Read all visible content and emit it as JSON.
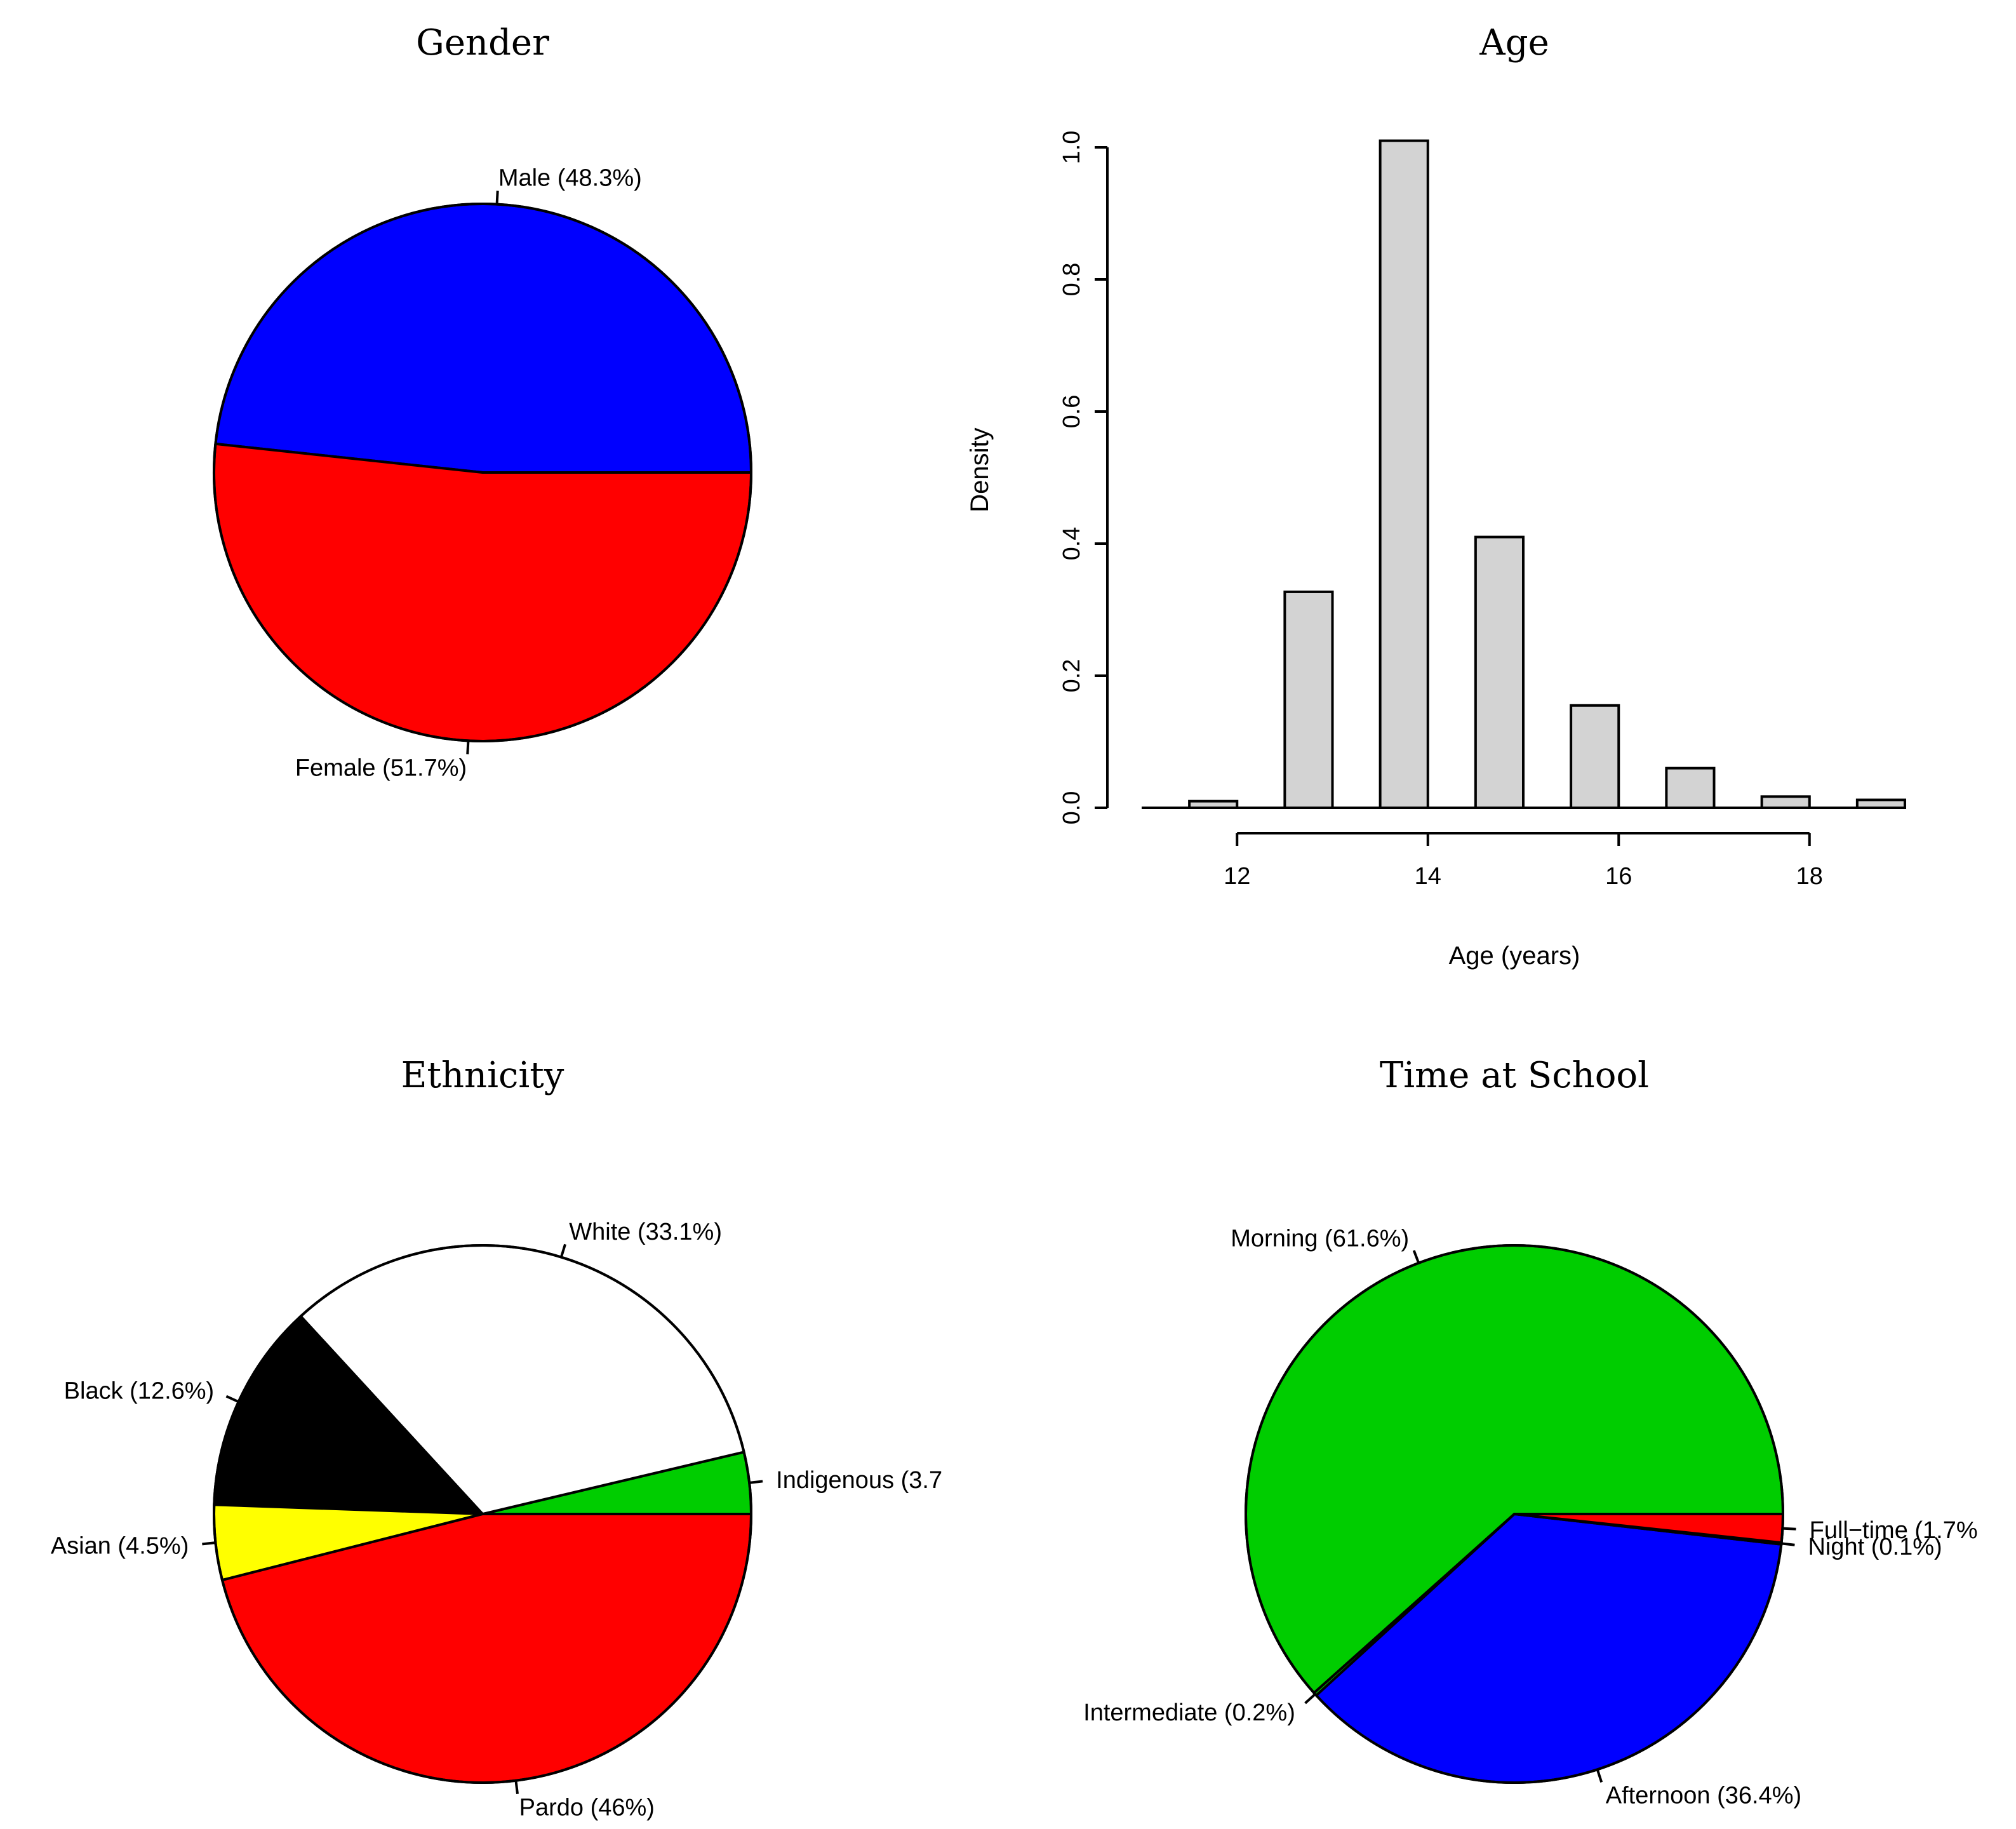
{
  "chart_data": [
    {
      "type": "pie",
      "title": "Gender",
      "slices": [
        {
          "label": "Male (48.3%)",
          "value": 48.3,
          "color": "#0000ff"
        },
        {
          "label": "Female (51.7%)",
          "value": 51.7,
          "color": "#ff0000"
        }
      ]
    },
    {
      "type": "bar",
      "title": "Age",
      "xlabel": "Age (years)",
      "ylabel": "Density",
      "xlim": [
        11,
        19
      ],
      "ylim": [
        0,
        1.0
      ],
      "xticks": [
        12,
        14,
        16,
        18
      ],
      "yticks": [
        0.0,
        0.2,
        0.4,
        0.6,
        0.8,
        1.0
      ],
      "xtick_labels": [
        "12",
        "14",
        "16",
        "18"
      ],
      "ytick_labels": [
        "0.0",
        "0.2",
        "0.4",
        "0.6",
        "0.8",
        "1.0"
      ],
      "bars": [
        {
          "x0": 11.5,
          "x1": 12.0,
          "value": 0.01
        },
        {
          "x0": 12.5,
          "x1": 13.0,
          "value": 0.327
        },
        {
          "x0": 13.5,
          "x1": 14.0,
          "value": 1.01
        },
        {
          "x0": 14.5,
          "x1": 15.0,
          "value": 0.41
        },
        {
          "x0": 15.5,
          "x1": 16.0,
          "value": 0.155
        },
        {
          "x0": 16.5,
          "x1": 17.0,
          "value": 0.06
        },
        {
          "x0": 17.5,
          "x1": 18.0,
          "value": 0.017
        },
        {
          "x0": 18.5,
          "x1": 19.0,
          "value": 0.012
        }
      ]
    },
    {
      "type": "pie",
      "title": "Ethnicity",
      "slices": [
        {
          "label": "Indigenous (3.7",
          "value": 3.7,
          "color": "#00cd00"
        },
        {
          "label": "White (33.1%)",
          "value": 33.1,
          "color": "#ffffff"
        },
        {
          "label": "Black (12.6%)",
          "value": 12.6,
          "color": "#000000"
        },
        {
          "label": "Asian (4.5%)",
          "value": 4.5,
          "color": "#ffff00"
        },
        {
          "label": "Pardo (46%)",
          "value": 46.0,
          "color": "#ff0000"
        }
      ]
    },
    {
      "type": "pie",
      "title": "Time at School",
      "slices": [
        {
          "label": "Morning (61.6%)",
          "value": 61.6,
          "color": "#00cd00"
        },
        {
          "label": "Intermediate (0.2%)",
          "value": 0.2,
          "color": "#00cd00"
        },
        {
          "label": "Afternoon (36.4%)",
          "value": 36.4,
          "color": "#0000ff"
        },
        {
          "label": "Night (0.1%)",
          "value": 0.1,
          "color": "#0000ff"
        },
        {
          "label": "Full−time (1.7%",
          "value": 1.7,
          "color": "#ff0000"
        }
      ]
    }
  ]
}
